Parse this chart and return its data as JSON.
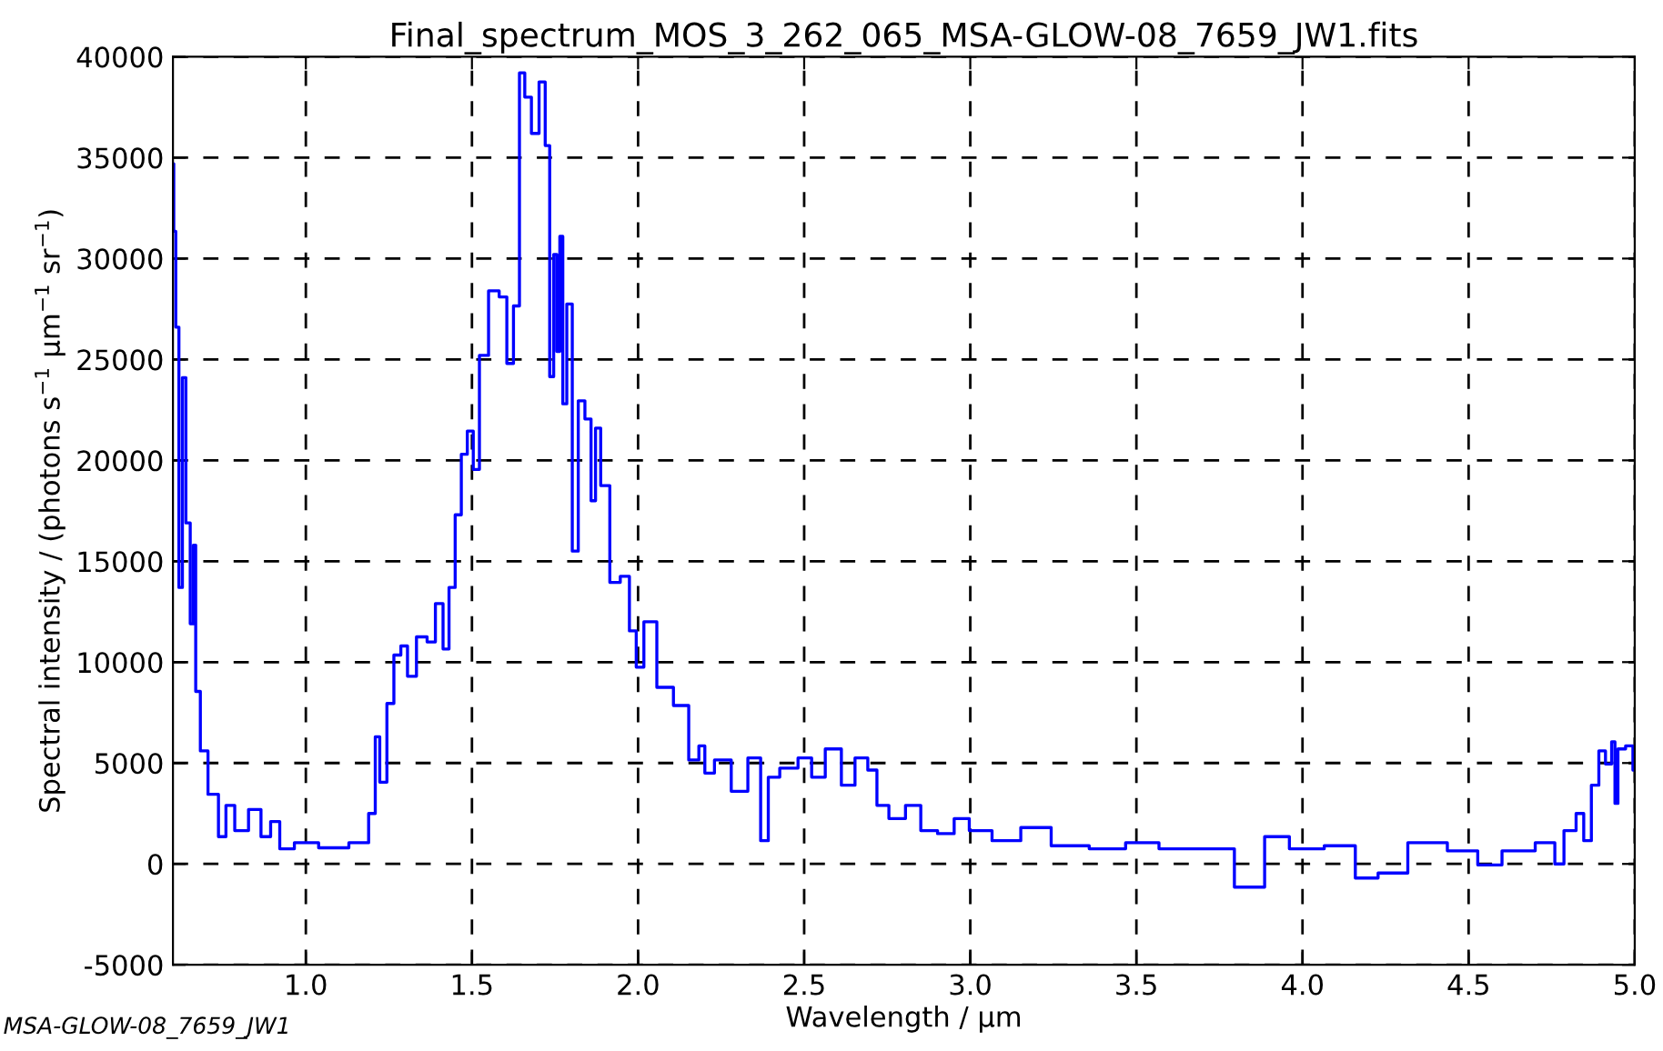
{
  "chart_data": {
    "type": "step",
    "title": "Final_spectrum_MOS_3_262_065_MSA-GLOW-08_7659_JW1.fits",
    "xlabel": "Wavelength / μm",
    "ylabel": "Spectral intensity / (photons s$^{−1}$ μm$^{−1}$ sr$^{−1}$)",
    "annotations": [
      "MSA-GLOW-08_7659_JW1"
    ],
    "series": [
      {
        "color": "#0000ff",
        "x": [
          0.6,
          0.605,
          0.612,
          0.624,
          0.633,
          0.645,
          0.659,
          0.664,
          0.673,
          0.692,
          0.719,
          0.755,
          0.764,
          0.808,
          0.847,
          0.883,
          0.905,
          0.938,
          0.993,
          1.084,
          1.175,
          1.203,
          1.215,
          1.23,
          1.258,
          1.272,
          1.3,
          1.312,
          1.354,
          1.376,
          1.404,
          1.422,
          1.44,
          1.459,
          1.477,
          1.495,
          1.513,
          1.532,
          1.568,
          1.596,
          1.614,
          1.636,
          1.65,
          1.668,
          1.69,
          1.714,
          1.727,
          1.741,
          1.751,
          1.76,
          1.769,
          1.778,
          1.793,
          1.811,
          1.829,
          1.851,
          1.866,
          1.878,
          1.897,
          1.933,
          1.96,
          1.988,
          2.001,
          2.034,
          2.079,
          2.134,
          2.171,
          2.195,
          2.207,
          2.253,
          2.308,
          2.353,
          2.385,
          2.399,
          2.454,
          2.509,
          2.536,
          2.591,
          2.633,
          2.673,
          2.71,
          2.728,
          2.782,
          2.828,
          2.874,
          2.929,
          2.974,
          3.02,
          3.111,
          3.193,
          3.294,
          3.422,
          3.513,
          3.623,
          3.733,
          3.857,
          3.915,
          4.006,
          4.125,
          4.193,
          4.262,
          4.372,
          4.5,
          4.555,
          4.646,
          4.755,
          4.764,
          4.81,
          4.837,
          4.856,
          4.883,
          4.901,
          4.923,
          4.938,
          4.943,
          4.956,
          4.989,
          5.0
        ],
        "values": [
          34700,
          31350,
          26600,
          13700,
          24100,
          16900,
          11900,
          15800,
          8550,
          5600,
          3450,
          1350,
          2900,
          1650,
          2700,
          1350,
          2100,
          750,
          1050,
          800,
          1050,
          2500,
          6300,
          4050,
          7950,
          10350,
          10800,
          9300,
          11250,
          11000,
          12900,
          10650,
          13700,
          17300,
          20300,
          21450,
          19550,
          25200,
          28400,
          28100,
          24800,
          27650,
          39200,
          38000,
          36200,
          38750,
          35600,
          24150,
          30200,
          25400,
          31100,
          22800,
          27750,
          15500,
          22950,
          22050,
          18000,
          21600,
          18750,
          13950,
          14250,
          11550,
          9750,
          12000,
          8750,
          7850,
          5150,
          5850,
          4500,
          5150,
          3600,
          5250,
          1150,
          4300,
          4750,
          5250,
          4300,
          5700,
          3900,
          5250,
          4650,
          2900,
          2250,
          2900,
          1650,
          1500,
          2250,
          1650,
          1150,
          1800,
          900,
          750,
          1050,
          750,
          750,
          -1150,
          1350,
          750,
          900,
          -700,
          -450,
          1050,
          650,
          -50,
          650,
          1050,
          0,
          1650,
          2500,
          1150,
          3900,
          5600,
          4950,
          6050,
          3000,
          5700,
          5850,
          4650
        ]
      }
    ],
    "xlim": [
      0.6,
      5.0
    ],
    "xticks": [
      {
        "value": 1.0,
        "label": "1.0"
      },
      {
        "value": 1.5,
        "label": "1.5"
      },
      {
        "value": 2.0,
        "label": "2.0"
      },
      {
        "value": 2.5,
        "label": "2.5"
      },
      {
        "value": 3.0,
        "label": "3.0"
      },
      {
        "value": 3.5,
        "label": "3.5"
      },
      {
        "value": 4.0,
        "label": "4.0"
      },
      {
        "value": 4.5,
        "label": "4.5"
      },
      {
        "value": 5.0,
        "label": "5.0"
      }
    ],
    "ylim": [
      -5000,
      40000
    ],
    "yticks": [
      -5000,
      0,
      5000,
      10000,
      15000,
      20000,
      25000,
      30000,
      35000,
      40000
    ],
    "grid": true,
    "line_style": "solid"
  }
}
